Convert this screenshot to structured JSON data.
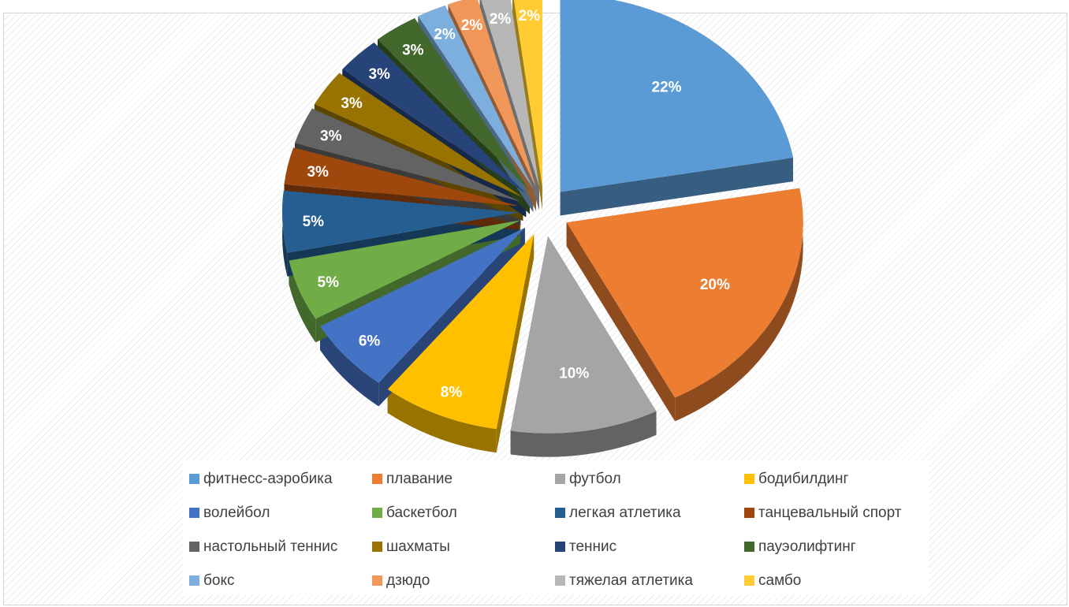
{
  "chart_data": {
    "type": "pie",
    "title": "",
    "slices": [
      {
        "label": "фитнесс-аэробика",
        "value": 22,
        "text": "22%",
        "color": "#5B9BD5"
      },
      {
        "label": "плавание",
        "value": 20,
        "text": "20%",
        "color": "#ED7D31"
      },
      {
        "label": "футбол",
        "value": 10,
        "text": "10%",
        "color": "#A5A5A5"
      },
      {
        "label": "бодибилдинг",
        "value": 8,
        "text": "8%",
        "color": "#FFC000"
      },
      {
        "label": "волейбол",
        "value": 6,
        "text": "6%",
        "color": "#4472C4"
      },
      {
        "label": "баскетбол",
        "value": 5,
        "text": "5%",
        "color": "#70AD47"
      },
      {
        "label": "легкая атлетика",
        "value": 5,
        "text": "5%",
        "color": "#255E91"
      },
      {
        "label": "танцевальный спорт",
        "value": 3,
        "text": "3%",
        "color": "#9E480E"
      },
      {
        "label": "настольный теннис",
        "value": 3,
        "text": "3%",
        "color": "#636363"
      },
      {
        "label": "шахматы",
        "value": 3,
        "text": "3%",
        "color": "#997300"
      },
      {
        "label": "теннис",
        "value": 3,
        "text": "3%",
        "color": "#264478"
      },
      {
        "label": "пауэолифтинг",
        "value": 3,
        "text": "3%",
        "color": "#43682B"
      },
      {
        "label": "бокс",
        "value": 2,
        "text": "2%",
        "color": "#7CAFDD"
      },
      {
        "label": "дзюдо",
        "value": 2,
        "text": "2%",
        "color": "#F1975A"
      },
      {
        "label": "тяжелая атлетика",
        "value": 2,
        "text": "2%",
        "color": "#B7B7B7"
      },
      {
        "label": "самбо",
        "value": 2,
        "text": "2%",
        "color": "#FFCD33"
      }
    ],
    "style": "3d-exploded",
    "legend_position": "bottom"
  }
}
